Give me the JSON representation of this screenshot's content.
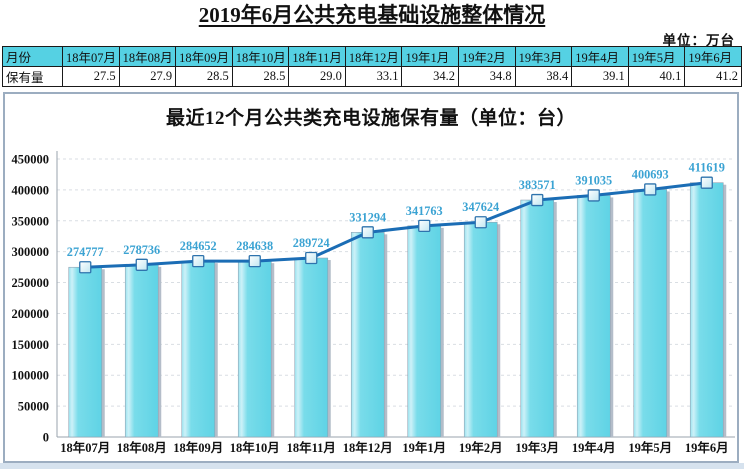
{
  "header": {
    "title": "2019年6月公共充电基础设施整体情况",
    "unit_label": "单位：万台"
  },
  "table": {
    "row_labels": {
      "month": "月份",
      "value": "保有量"
    },
    "months": [
      "18年07月",
      "18年08月",
      "18年09月",
      "18年10月",
      "18年11月",
      "18年12月",
      "19年1月",
      "19年2月",
      "19年3月",
      "19年4月",
      "19年5月",
      "19年6月"
    ],
    "values": [
      "27.5",
      "27.9",
      "28.5",
      "28.5",
      "29.0",
      "33.1",
      "34.2",
      "34.8",
      "38.4",
      "39.1",
      "40.1",
      "41.2"
    ]
  },
  "chart_data": {
    "type": "bar",
    "overlay": "line",
    "title": "最近12个月公共类充电设施保有量（单位：台）",
    "categories": [
      "18年07月",
      "18年08月",
      "18年09月",
      "18年10月",
      "18年11月",
      "18年12月",
      "19年1月",
      "19年2月",
      "19年3月",
      "19年4月",
      "19年5月",
      "19年6月"
    ],
    "values": [
      274777,
      278736,
      284652,
      284638,
      289724,
      331294,
      341763,
      347624,
      383571,
      391035,
      400693,
      411619
    ],
    "ylim": [
      0,
      450000
    ],
    "ytick_step": 50000,
    "grid": true,
    "legend_position": "none",
    "colors": {
      "bar_fill": "#68d7e7",
      "bar_fill_light": "#cdf1f8",
      "bar_stroke": "#8fa3b3",
      "bar_shadow": "#b4bdc9",
      "line": "#1b6db5",
      "marker_fill": "#e2f3f9",
      "marker_border": "#2e73ad",
      "data_label": "#3ba3d3",
      "grid_line": "#d9dee3",
      "axis_line": "#9aa3ad",
      "table_header_bg": "#55d1e3",
      "panel_border": "#9cadc0"
    }
  }
}
